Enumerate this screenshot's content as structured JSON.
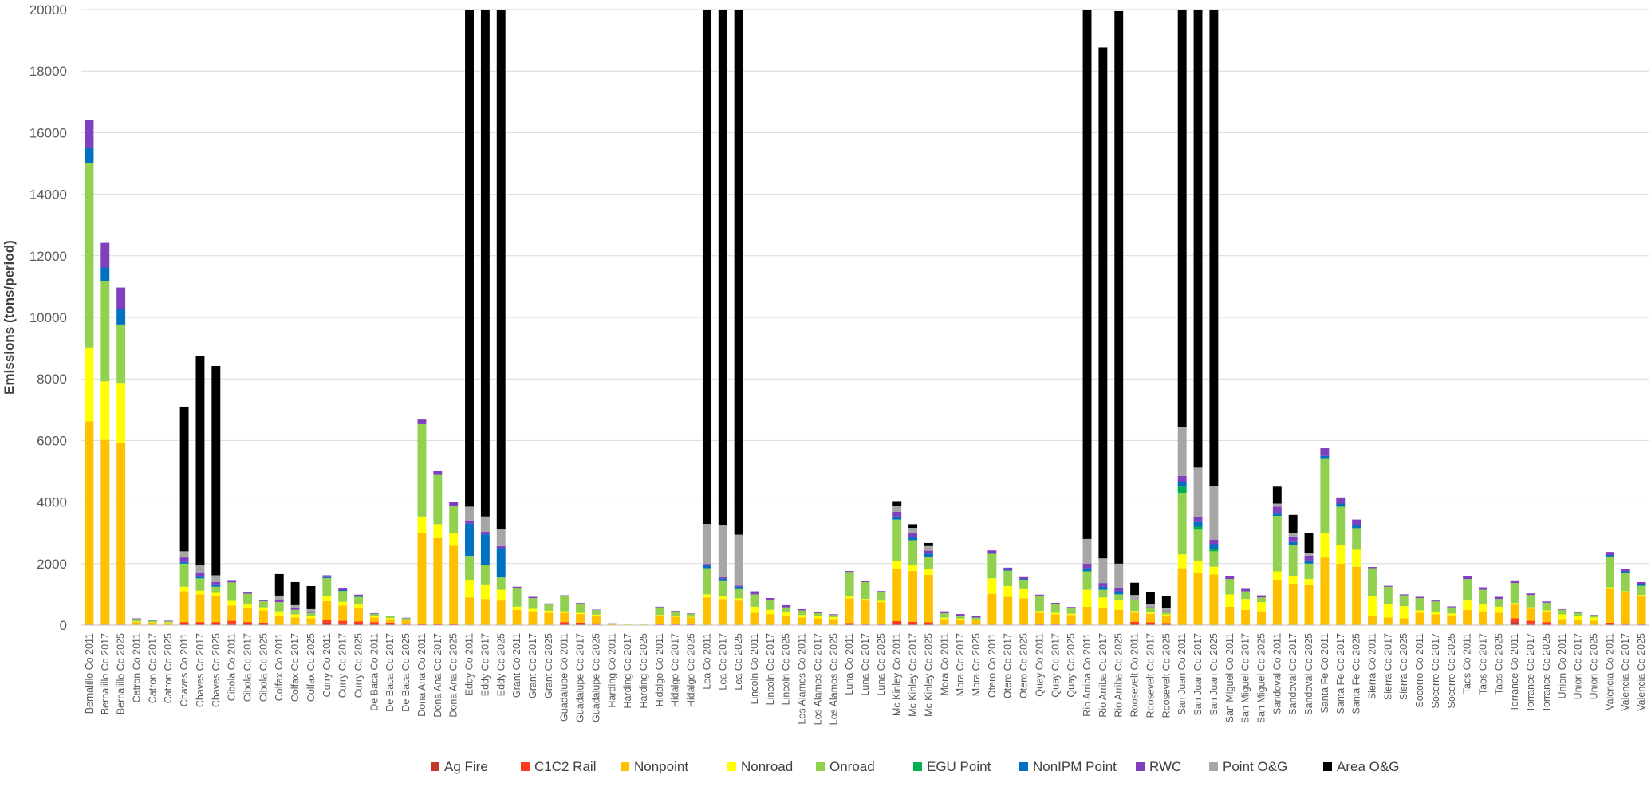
{
  "chart_data": {
    "type": "bar",
    "stacked": true,
    "ylabel": "Emissions (tons/period)",
    "xlabel": "",
    "ylim": [
      0,
      20000
    ],
    "yticks": [
      "0",
      "2000",
      "4000",
      "6000",
      "8000",
      "10000",
      "12000",
      "14000",
      "16000",
      "18000",
      "20000"
    ],
    "grid": true,
    "legend_position": "bottom",
    "categories": [
      "Bernalillo Co 2011",
      "Bernalillo Co 2017",
      "Bernalillo Co 2025",
      "Catron Co 2011",
      "Catron Co 2017",
      "Catron Co 2025",
      "Chaves Co 2011",
      "Chaves Co 2017",
      "Chaves Co 2025",
      "Cibola Co 2011",
      "Cibola Co 2017",
      "Cibola Co 2025",
      "Colfax Co 2011",
      "Colfax Co 2017",
      "Colfax Co 2025",
      "Curry Co 2011",
      "Curry Co 2017",
      "Curry Co 2025",
      "De Baca Co 2011",
      "De Baca Co 2017",
      "De Baca Co 2025",
      "Dona Ana Co 2011",
      "Dona Ana Co 2017",
      "Dona Ana Co 2025",
      "Eddy Co 2011",
      "Eddy Co 2017",
      "Eddy Co 2025",
      "Grant Co 2011",
      "Grant Co 2017",
      "Grant Co 2025",
      "Guadalupe Co 2011",
      "Guadalupe Co 2017",
      "Guadalupe Co 2025",
      "Harding Co 2011",
      "Harding Co 2017",
      "Harding Co 2025",
      "Hidalgo Co 2011",
      "Hidalgo Co 2017",
      "Hidalgo Co 2025",
      "Lea Co 2011",
      "Lea Co 2017",
      "Lea Co 2025",
      "Lincoln Co 2011",
      "Lincoln Co 2017",
      "Lincoln Co 2025",
      "Los Alamos Co 2011",
      "Los Alamos Co 2017",
      "Los Alamos Co 2025",
      "Luna Co 2011",
      "Luna Co 2017",
      "Luna Co 2025",
      "Mc Kinley Co 2011",
      "Mc Kinley Co 2017",
      "Mc Kinley Co 2025",
      "Mora Co 2011",
      "Mora Co 2017",
      "Mora Co 2025",
      "Otero Co 2011",
      "Otero Co 2017",
      "Otero Co 2025",
      "Quay Co 2011",
      "Quay Co 2017",
      "Quay Co 2025",
      "Rio Arriba Co 2011",
      "Rio Arriba Co 2017",
      "Rio Arriba Co 2025",
      "Roosevelt Co 2011",
      "Roosevelt Co 2017",
      "Roosevelt Co 2025",
      "San Juan Co 2011",
      "San Juan Co 2017",
      "San Juan Co 2025",
      "San Miguel Co 2011",
      "San Miguel Co 2017",
      "San Miguel Co 2025",
      "Sandoval Co 2011",
      "Sandoval Co 2017",
      "Sandoval Co 2025",
      "Santa Fe Co 2011",
      "Santa Fe Co 2017",
      "Santa Fe Co 2025",
      "Sierra Co 2011",
      "Sierra Co 2017",
      "Sierra Co 2025",
      "Socorro Co 2011",
      "Socorro Co 2017",
      "Socorro Co 2025",
      "Taos Co 2011",
      "Taos Co 2017",
      "Taos Co 2025",
      "Torrance Co 2011",
      "Torrance Co 2017",
      "Torrance Co 2025",
      "Union Co 2011",
      "Union Co 2017",
      "Union Co 2025",
      "Valencia Co 2011",
      "Valencia Co 2017",
      "Valencia Co 2025"
    ],
    "series": [
      {
        "name": "Ag Fire",
        "color": "#c0392b",
        "values": [
          0,
          0,
          0,
          0,
          0,
          0,
          40,
          40,
          40,
          60,
          40,
          30,
          0,
          0,
          0,
          80,
          60,
          50,
          40,
          30,
          20,
          0,
          0,
          0,
          0,
          0,
          0,
          0,
          0,
          0,
          40,
          30,
          20,
          0,
          0,
          0,
          20,
          20,
          20,
          0,
          0,
          0,
          0,
          0,
          0,
          0,
          0,
          0,
          30,
          20,
          20,
          50,
          40,
          30,
          0,
          0,
          0,
          0,
          0,
          0,
          20,
          20,
          20,
          0,
          0,
          0,
          50,
          40,
          30,
          0,
          0,
          0,
          0,
          0,
          0,
          0,
          0,
          0,
          0,
          0,
          0,
          0,
          0,
          0,
          0,
          0,
          0,
          0,
          0,
          0,
          100,
          60,
          40,
          0,
          0,
          0,
          30,
          20,
          20
        ]
      },
      {
        "name": "C1C2 Rail",
        "color": "#ff3b1f",
        "values": [
          20,
          20,
          20,
          0,
          0,
          0,
          60,
          60,
          60,
          80,
          60,
          50,
          0,
          0,
          0,
          100,
          80,
          70,
          60,
          50,
          40,
          30,
          30,
          30,
          0,
          0,
          0,
          0,
          0,
          0,
          60,
          50,
          40,
          0,
          0,
          0,
          30,
          30,
          30,
          0,
          0,
          0,
          0,
          0,
          0,
          0,
          0,
          0,
          40,
          30,
          30,
          80,
          70,
          60,
          0,
          0,
          0,
          20,
          20,
          20,
          30,
          30,
          30,
          0,
          0,
          0,
          60,
          50,
          40,
          0,
          0,
          0,
          0,
          0,
          0,
          0,
          0,
          0,
          0,
          0,
          0,
          0,
          0,
          0,
          0,
          0,
          0,
          0,
          0,
          0,
          120,
          80,
          60,
          0,
          0,
          0,
          50,
          40,
          30
        ]
      },
      {
        "name": "Nonpoint",
        "color": "#ffc000",
        "values": [
          6600,
          6000,
          5900,
          100,
          80,
          70,
          1000,
          900,
          850,
          500,
          450,
          400,
          300,
          250,
          220,
          600,
          500,
          450,
          150,
          120,
          100,
          2950,
          2800,
          2550,
          900,
          850,
          800,
          500,
          450,
          400,
          300,
          280,
          250,
          30,
          20,
          15,
          250,
          220,
          200,
          900,
          850,
          800,
          400,
          350,
          300,
          250,
          220,
          200,
          800,
          750,
          700,
          1700,
          1650,
          1550,
          200,
          180,
          160,
          1000,
          900,
          850,
          350,
          300,
          280,
          600,
          550,
          500,
          300,
          280,
          250,
          1850,
          1700,
          1650,
          600,
          500,
          450,
          1450,
          1350,
          1300,
          2200,
          2000,
          1900,
          300,
          250,
          220,
          400,
          350,
          320,
          500,
          450,
          400,
          450,
          400,
          350,
          200,
          180,
          150,
          1100,
          1000,
          900
        ]
      },
      {
        "name": "Nonroad",
        "color": "#ffff00",
        "values": [
          2400,
          1900,
          1950,
          20,
          15,
          15,
          150,
          120,
          100,
          150,
          120,
          100,
          150,
          100,
          80,
          150,
          120,
          100,
          40,
          30,
          25,
          550,
          450,
          400,
          550,
          450,
          350,
          100,
          80,
          70,
          50,
          40,
          30,
          10,
          8,
          6,
          30,
          25,
          20,
          100,
          80,
          70,
          200,
          150,
          130,
          80,
          70,
          60,
          60,
          50,
          40,
          250,
          200,
          180,
          40,
          30,
          25,
          500,
          350,
          300,
          60,
          50,
          40,
          550,
          350,
          300,
          50,
          40,
          30,
          450,
          400,
          250,
          400,
          350,
          300,
          300,
          250,
          200,
          800,
          600,
          550,
          650,
          450,
          400,
          80,
          70,
          60,
          300,
          250,
          200,
          50,
          40,
          30,
          150,
          120,
          100,
          50,
          40,
          30
        ]
      },
      {
        "name": "Onroad",
        "color": "#92d050",
        "values": [
          6000,
          3250,
          1900,
          80,
          50,
          40,
          750,
          400,
          200,
          600,
          350,
          200,
          300,
          150,
          100,
          600,
          350,
          250,
          80,
          60,
          40,
          3000,
          1600,
          900,
          800,
          650,
          400,
          600,
          350,
          200,
          500,
          300,
          150,
          20,
          15,
          12,
          250,
          150,
          100,
          850,
          500,
          300,
          400,
          300,
          150,
          150,
          100,
          70,
          800,
          550,
          300,
          1350,
          800,
          400,
          150,
          100,
          60,
          800,
          500,
          300,
          500,
          300,
          200,
          600,
          250,
          200,
          350,
          150,
          100,
          2000,
          1000,
          500,
          500,
          250,
          150,
          1800,
          1000,
          500,
          2400,
          1250,
          700,
          900,
          550,
          350,
          400,
          350,
          200,
          700,
          450,
          250,
          650,
          400,
          250,
          150,
          100,
          70,
          1000,
          600,
          300
        ]
      },
      {
        "name": "EGU Point",
        "color": "#00b050",
        "values": [
          0,
          0,
          0,
          0,
          0,
          0,
          0,
          0,
          0,
          0,
          0,
          0,
          0,
          0,
          0,
          0,
          0,
          0,
          0,
          0,
          0,
          0,
          0,
          0,
          0,
          0,
          0,
          0,
          0,
          0,
          0,
          0,
          0,
          0,
          0,
          0,
          0,
          0,
          0,
          0,
          0,
          0,
          0,
          0,
          0,
          0,
          0,
          0,
          0,
          0,
          0,
          0,
          0,
          0,
          0,
          0,
          0,
          0,
          0,
          0,
          0,
          0,
          0,
          0,
          0,
          0,
          0,
          0,
          0,
          200,
          100,
          80,
          0,
          0,
          0,
          0,
          0,
          0,
          0,
          0,
          0,
          0,
          0,
          0,
          0,
          0,
          0,
          0,
          0,
          0,
          0,
          0,
          0,
          0,
          0,
          0,
          0,
          0,
          0
        ]
      },
      {
        "name": "NonIPM Point",
        "color": "#0070c0",
        "values": [
          500,
          450,
          500,
          0,
          0,
          0,
          50,
          50,
          50,
          0,
          0,
          0,
          0,
          0,
          0,
          30,
          30,
          30,
          0,
          0,
          0,
          0,
          0,
          0,
          1050,
          1000,
          950,
          0,
          0,
          0,
          0,
          0,
          0,
          0,
          0,
          0,
          0,
          0,
          0,
          80,
          80,
          80,
          0,
          0,
          0,
          0,
          0,
          0,
          0,
          0,
          0,
          100,
          100,
          100,
          0,
          0,
          0,
          30,
          30,
          30,
          0,
          0,
          0,
          100,
          100,
          100,
          0,
          0,
          0,
          150,
          150,
          150,
          0,
          0,
          0,
          100,
          100,
          100,
          100,
          100,
          100,
          0,
          0,
          0,
          0,
          0,
          0,
          0,
          0,
          0,
          0,
          0,
          0,
          0,
          0,
          0,
          50,
          50,
          50
        ]
      },
      {
        "name": "RWC",
        "color": "#7f3fbf",
        "values": [
          900,
          800,
          700,
          20,
          20,
          20,
          150,
          120,
          100,
          50,
          40,
          30,
          60,
          50,
          40,
          60,
          50,
          40,
          20,
          20,
          15,
          150,
          120,
          110,
          100,
          80,
          70,
          50,
          40,
          35,
          20,
          20,
          15,
          5,
          5,
          5,
          20,
          20,
          15,
          60,
          50,
          40,
          100,
          80,
          70,
          40,
          30,
          25,
          30,
          25,
          20,
          150,
          120,
          100,
          60,
          50,
          40,
          80,
          70,
          60,
          30,
          25,
          20,
          150,
          120,
          100,
          20,
          20,
          15,
          200,
          170,
          150,
          100,
          80,
          70,
          200,
          180,
          160,
          250,
          200,
          180,
          40,
          30,
          30,
          40,
          30,
          30,
          100,
          80,
          70,
          60,
          50,
          40,
          20,
          20,
          15,
          100,
          80,
          70
        ]
      },
      {
        "name": "Point O&G",
        "color": "#a6a6a6",
        "values": [
          0,
          0,
          0,
          0,
          0,
          0,
          200,
          250,
          220,
          0,
          0,
          0,
          150,
          100,
          80,
          0,
          0,
          0,
          0,
          0,
          0,
          0,
          0,
          0,
          450,
          500,
          550,
          0,
          0,
          0,
          0,
          0,
          0,
          0,
          0,
          0,
          0,
          0,
          0,
          1300,
          1700,
          1650,
          0,
          0,
          0,
          0,
          0,
          0,
          0,
          0,
          0,
          200,
          180,
          150,
          0,
          0,
          0,
          0,
          0,
          0,
          0,
          0,
          0,
          800,
          800,
          800,
          150,
          100,
          80,
          1600,
          1600,
          1750,
          0,
          0,
          0,
          100,
          100,
          80,
          0,
          0,
          0,
          0,
          0,
          0,
          0,
          0,
          0,
          0,
          0,
          0,
          0,
          0,
          0,
          0,
          0,
          0,
          0,
          0,
          0
        ]
      },
      {
        "name": "Area O&G",
        "color": "#000000",
        "values": [
          0,
          0,
          0,
          0,
          0,
          0,
          4700,
          6800,
          6800,
          0,
          0,
          0,
          700,
          750,
          750,
          0,
          0,
          0,
          0,
          0,
          0,
          0,
          0,
          0,
          16200,
          16700,
          17100,
          0,
          0,
          0,
          0,
          0,
          0,
          0,
          0,
          0,
          0,
          0,
          0,
          16700,
          16900,
          17100,
          0,
          0,
          0,
          0,
          0,
          0,
          0,
          0,
          0,
          150,
          120,
          100,
          0,
          0,
          0,
          0,
          0,
          0,
          0,
          0,
          0,
          17250,
          16600,
          17950,
          400,
          400,
          400,
          13550,
          14900,
          15500,
          0,
          0,
          0,
          550,
          600,
          650,
          0,
          0,
          0,
          0,
          0,
          0,
          0,
          0,
          0,
          0,
          0,
          0,
          0,
          0,
          0,
          0,
          0,
          0,
          0,
          0,
          0
        ]
      }
    ]
  }
}
